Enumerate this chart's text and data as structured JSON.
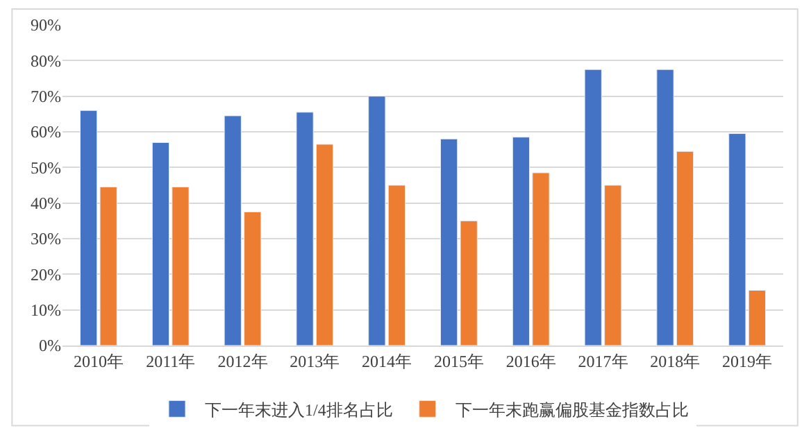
{
  "chart_data": {
    "type": "bar",
    "categories": [
      "2010年",
      "2011年",
      "2012年",
      "2013年",
      "2014年",
      "2015年",
      "2016年",
      "2017年",
      "2018年",
      "2019年"
    ],
    "series": [
      {
        "name": "下一年末进入1/4排名占比",
        "color": "#4472c4",
        "values": [
          66,
          57,
          64.5,
          65.5,
          70,
          58,
          58.5,
          77.5,
          77.5,
          59.5
        ]
      },
      {
        "name": "下一年末跑赢偏股基金指数占比",
        "color": "#ed7d31",
        "values": [
          44.5,
          44.5,
          37.5,
          56.5,
          45,
          35,
          48.5,
          45,
          54.5,
          15.5
        ]
      }
    ],
    "ylim": [
      0,
      90
    ],
    "yticks": [
      {
        "value": 0,
        "label": "0%"
      },
      {
        "value": 10,
        "label": "10%"
      },
      {
        "value": 20,
        "label": "20%"
      },
      {
        "value": 30,
        "label": "30%"
      },
      {
        "value": 40,
        "label": "40%"
      },
      {
        "value": 50,
        "label": "50%"
      },
      {
        "value": 60,
        "label": "60%"
      },
      {
        "value": 70,
        "label": "70%"
      },
      {
        "value": 80,
        "label": "80%"
      },
      {
        "value": 90,
        "label": "90%"
      }
    ],
    "grid": "y",
    "legend": "bottom"
  }
}
